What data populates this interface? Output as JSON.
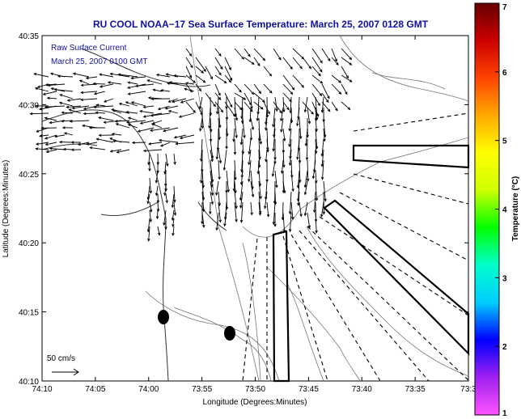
{
  "chart_data": {
    "type": "vector-field-map",
    "title": "RU COOL  NOAA−17  Sea Surface Temperature:  March 25, 2007 0128 GMT",
    "subtitle_lines": [
      "Raw Surface Current",
      "March 25, 2007 0100 GMT"
    ],
    "xlabel": "Longitude (Degrees:Minutes)",
    "ylabel": "Latitude (Degrees:Minutes)",
    "x_ticks": [
      "74:10",
      "74:05",
      "74:00",
      "73:55",
      "73:50",
      "73:45",
      "73:40",
      "73:35",
      "73:3"
    ],
    "y_ticks": [
      "40:35",
      "40:30",
      "40:25",
      "40:20",
      "40:15",
      "40:10"
    ],
    "xlim_minutes_west": [
      10,
      30
    ],
    "ylim_minutes_north": [
      10,
      35
    ],
    "scale_label": "50 cm/s",
    "colorbar": {
      "label": "Temperature (°C)",
      "ticks": [
        "1",
        "2",
        "3",
        "4",
        "5",
        "6",
        "7"
      ],
      "range": [
        1,
        7
      ],
      "colors": [
        "#ff55ff",
        "#a020f0",
        "#0000ff",
        "#00ccff",
        "#00ffcc",
        "#00ff00",
        "#ccff00",
        "#ffff00",
        "#ffaa00",
        "#ff4400",
        "#cc0000",
        "#660000"
      ]
    },
    "grid": false,
    "markers": [
      {
        "lon_min": 73.98,
        "lat_min": 40.245
      },
      {
        "lon_min": 73.87,
        "lat_min": 40.225
      }
    ]
  }
}
